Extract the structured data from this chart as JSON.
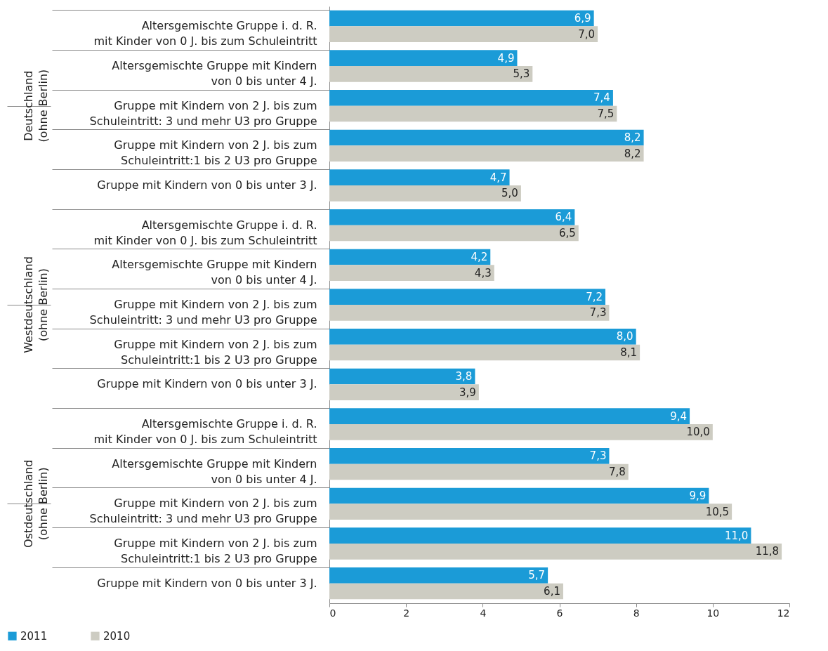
{
  "chart_data": {
    "type": "bar",
    "orientation": "horizontal",
    "legend": "bottom",
    "grid": false,
    "categories": [
      "Altersgemischte Gruppe i. d. R.\nmit Kinder von  0  J.  bis zum Schuleintritt",
      "Altersgemischte Gruppe mit Kindern\nvon 0  bis unter 4  J.",
      "Gruppe mit Kindern von 2  J.  bis zum\nSchuleintritt: 3 und mehr U3 pro Gruppe",
      "Gruppe mit Kindern von 2  J.  bis zum\nSchuleintritt:1 bis 2 U3 pro Gruppe",
      "Gruppe mit Kindern von 0 bis unter 3 J.",
      "Altersgemischte Gruppe i. d. R.\nmit Kinder von  0  J.  bis zum Schuleintritt",
      "Altersgemischte Gruppe mit Kindern\nvon 0  bis unter 4  J.",
      "Gruppe mit Kindern von 2  J.  bis zum\nSchuleintritt: 3 und mehr U3 pro Gruppe",
      "Gruppe mit Kindern von 2  J.  bis zum\nSchuleintritt:1 bis 2 U3 pro Gruppe",
      "Gruppe mit Kindern von 0 bis unter 3 J.",
      "Altersgemischte Gruppe i. d. R.\nmit Kinder von  0  J.  bis zum Schuleintritt",
      "Altersgemischte Gruppe mit Kindern\nvon 0  bis unter 4  J.",
      "Gruppe mit Kindern von 2  J.  bis zum\nSchuleintritt: 3 und mehr U3 pro Gruppe",
      "Gruppe mit Kindern von 2  J.  bis zum\nSchuleintritt:1 bis 2 U3 pro Gruppe",
      "Gruppe mit Kindern von 0 bis unter 3 J."
    ],
    "series": [
      {
        "name": "2011",
        "color": "#1b9bd7",
        "values": [
          6.9,
          4.9,
          7.4,
          8.2,
          4.7,
          6.4,
          4.2,
          7.2,
          8.0,
          3.8,
          9.4,
          7.3,
          9.9,
          11.0,
          5.7
        ],
        "value_labels": [
          "6,9",
          "4,9",
          "7,4",
          "8,2",
          "4,7",
          "6,4",
          "4,2",
          "7,2",
          "8,0",
          "3,8",
          "9,4",
          "7,3",
          "9,9",
          "11,0",
          "5,7"
        ]
      },
      {
        "name": "2010",
        "color": "#cdccc2",
        "values": [
          7.0,
          5.3,
          7.5,
          8.2,
          5.0,
          6.5,
          4.3,
          7.3,
          8.1,
          3.9,
          10.0,
          7.8,
          10.5,
          11.8,
          6.1
        ],
        "value_labels": [
          "7,0",
          "5,3",
          "7,5",
          "8,2",
          "5,0",
          "6,5",
          "4,3",
          "7,3",
          "8,1",
          "3,9",
          "10,0",
          "7,8",
          "10,5",
          "11,8",
          "6,1"
        ]
      }
    ],
    "xlim": [
      0,
      12
    ],
    "xticks": [
      0,
      2,
      4,
      6,
      8,
      10,
      12
    ],
    "annotations": [
      "Deutschland\n(ohne Berlin)",
      "Westdeutschland\n(ohne Berlin)",
      "Ostdeutschland\n(ohne Berlin)"
    ]
  }
}
